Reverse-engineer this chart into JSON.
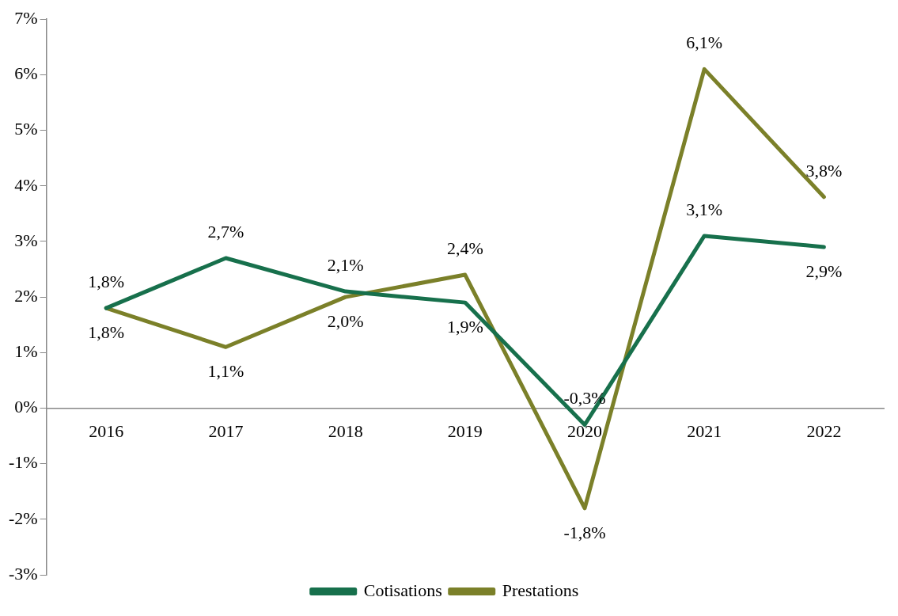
{
  "chart_data": {
    "type": "line",
    "categories": [
      "2016",
      "2017",
      "2018",
      "2019",
      "2020",
      "2021",
      "2022"
    ],
    "series": [
      {
        "name": "Cotisations",
        "color": "#17704c",
        "values": [
          1.8,
          2.7,
          2.1,
          1.9,
          -0.3,
          3.1,
          2.9
        ],
        "value_labels": [
          "1,8%",
          "2,7%",
          "2,1%",
          "1,9%",
          "-0,3%",
          "3,1%",
          "2,9%"
        ]
      },
      {
        "name": "Prestations",
        "color": "#7b8029",
        "values": [
          1.8,
          1.1,
          2.0,
          2.4,
          -1.8,
          6.1,
          3.8
        ],
        "value_labels": [
          "1,8%",
          "1,1%",
          "2,0%",
          "2,4%",
          "-1,8%",
          "6,1%",
          "3,8%"
        ]
      }
    ],
    "ylim": [
      -3,
      7
    ],
    "yticks": [
      {
        "value": -3,
        "label": "-3%"
      },
      {
        "value": -2,
        "label": "-2%"
      },
      {
        "value": -1,
        "label": "-1%"
      },
      {
        "value": 0,
        "label": "0%"
      },
      {
        "value": 1,
        "label": "1%"
      },
      {
        "value": 2,
        "label": "2%"
      },
      {
        "value": 3,
        "label": "3%"
      },
      {
        "value": 4,
        "label": "4%"
      },
      {
        "value": 5,
        "label": "5%"
      },
      {
        "value": 6,
        "label": "6%"
      },
      {
        "value": 7,
        "label": "7%"
      }
    ],
    "grid": false,
    "legend": "bottom",
    "marker": "none",
    "line_style": "solid"
  }
}
